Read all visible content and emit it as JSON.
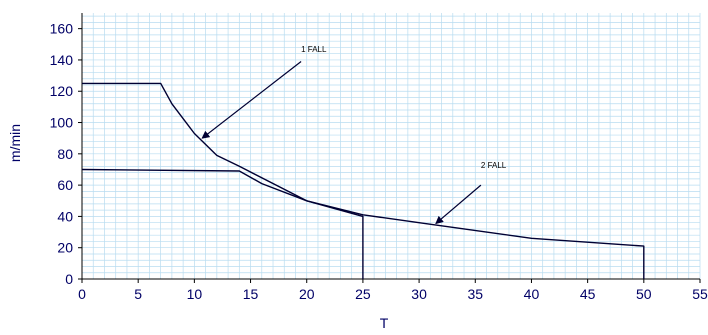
{
  "chart_data": {
    "type": "line",
    "title": "",
    "xlabel": "T",
    "ylabel": "m/min",
    "xlim": [
      0,
      55
    ],
    "ylim": [
      0,
      170
    ],
    "x_ticks": [
      0,
      5,
      10,
      15,
      20,
      25,
      30,
      35,
      40,
      45,
      50,
      55
    ],
    "y_ticks": [
      0,
      20,
      40,
      60,
      80,
      100,
      120,
      140,
      160
    ],
    "grid": true,
    "legend": "none",
    "colors": {
      "line": "#000033",
      "grid": "#b8dcf0",
      "text": "#000066",
      "axis": "#000000"
    },
    "series": [
      {
        "points": [
          [
            0,
            125
          ],
          [
            7,
            125
          ],
          [
            8,
            112
          ],
          [
            10,
            93
          ],
          [
            12,
            79
          ],
          [
            14,
            72
          ],
          [
            20,
            50
          ],
          [
            25,
            40
          ],
          [
            25,
            0
          ]
        ]
      },
      {
        "points": [
          [
            0,
            70
          ],
          [
            14,
            69
          ],
          [
            16,
            61
          ],
          [
            20,
            50
          ],
          [
            25,
            41
          ],
          [
            30,
            36
          ],
          [
            40,
            26
          ],
          [
            50,
            21
          ],
          [
            50,
            0
          ]
        ]
      }
    ],
    "annotations": [
      {
        "text": "1 FALL",
        "text_at": [
          19.5,
          145
        ],
        "arrow_from": [
          19.5,
          139
        ],
        "arrow_to": [
          10.7,
          90
        ]
      },
      {
        "text": "2 FALL",
        "text_at": [
          35.5,
          71
        ],
        "arrow_from": [
          35.5,
          60
        ],
        "arrow_to": [
          31.5,
          35.5
        ]
      }
    ]
  }
}
